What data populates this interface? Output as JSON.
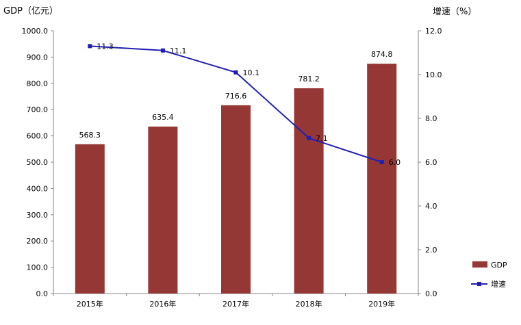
{
  "chart_data": {
    "type": "bar+line",
    "categories": [
      "2015年",
      "2016年",
      "2017年",
      "2018年",
      "2019年"
    ],
    "series": [
      {
        "name": "GDP",
        "type": "bar",
        "axis": "left",
        "values": [
          568.3,
          635.4,
          716.6,
          781.2,
          874.8
        ],
        "labels": [
          "568.3",
          "635.4",
          "716.6",
          "781.2",
          "874.8"
        ],
        "color": "#953735"
      },
      {
        "name": "增速",
        "type": "line",
        "axis": "right",
        "values": [
          11.3,
          11.1,
          10.1,
          7.1,
          6.0
        ],
        "labels": [
          "11.3",
          "11.1",
          "10.1",
          "7.1",
          "6.0"
        ],
        "color": "#1f1fb4"
      }
    ],
    "ylabel_left": "GDP（亿元）",
    "ylabel_right": "增速（%）",
    "ylim_left": [
      0,
      1000
    ],
    "ylim_right": [
      0,
      12
    ],
    "yticks_left": [
      "0.0",
      "100.0",
      "200.0",
      "300.0",
      "400.0",
      "500.0",
      "600.0",
      "700.0",
      "800.0",
      "900.0",
      "1000.0"
    ],
    "yticks_right": [
      "0.0",
      "2.0",
      "4.0",
      "6.0",
      "8.0",
      "10.0",
      "12.0"
    ],
    "legend_position": "bottom-right",
    "grid": false
  }
}
